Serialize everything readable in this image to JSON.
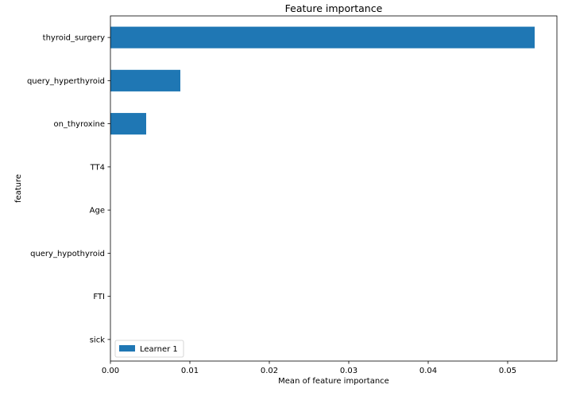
{
  "chart_data": {
    "type": "bar",
    "orientation": "horizontal",
    "title": "Feature importance",
    "xlabel": "Mean of feature importance",
    "ylabel": "feature",
    "categories": [
      "thyroid_surgery",
      "query_hyperthyroid",
      "on_thyroxine",
      "TT4",
      "Age",
      "query_hypothyroid",
      "FTI",
      "sick"
    ],
    "series": [
      {
        "name": "Learner 1",
        "values": [
          0.0534,
          0.0088,
          0.0045,
          0,
          0,
          0,
          0,
          0
        ],
        "color": "#1f77b4"
      }
    ],
    "xlim": [
      0,
      0.0562
    ],
    "xticks": [
      0.0,
      0.01,
      0.02,
      0.03,
      0.04,
      0.05
    ],
    "xtick_labels": [
      "0.00",
      "0.01",
      "0.02",
      "0.03",
      "0.04",
      "0.05"
    ],
    "grid": false,
    "legend_position": "lower-left"
  }
}
